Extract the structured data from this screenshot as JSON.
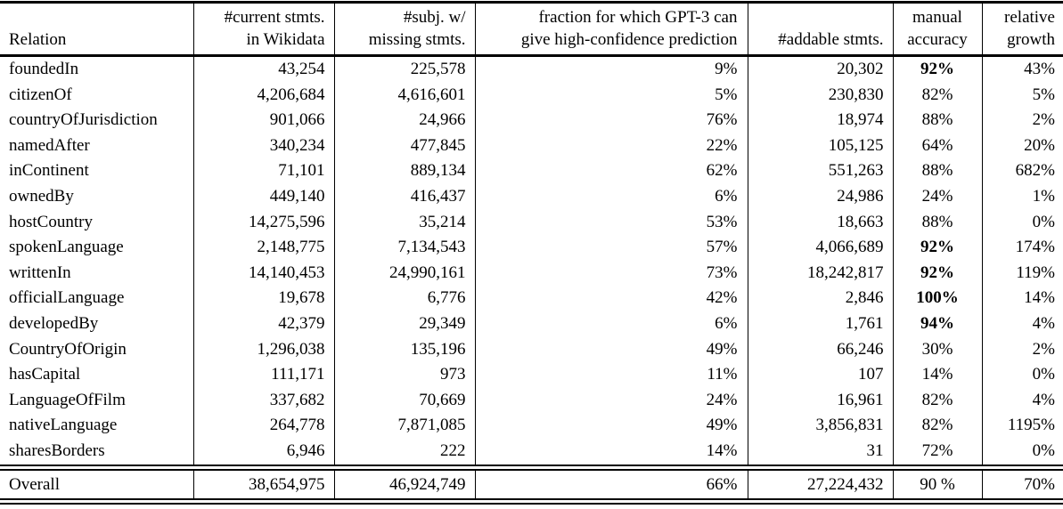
{
  "table": {
    "text_color": "#000000",
    "background_color": "#ffffff",
    "rule_color": "#000000",
    "columns": [
      {
        "key": "relation",
        "label": "Relation"
      },
      {
        "key": "current",
        "label": "#current stmts.\nin Wikidata"
      },
      {
        "key": "missing",
        "label": "#subj. w/\nmissing stmts."
      },
      {
        "key": "fraction",
        "label": "fraction for which GPT-3 can\ngive high-confidence prediction"
      },
      {
        "key": "addable",
        "label": "#addable stmts."
      },
      {
        "key": "accuracy",
        "label": "manual\naccuracy"
      },
      {
        "key": "growth",
        "label": "relative\ngrowth"
      }
    ],
    "rows": [
      {
        "relation": "foundedIn",
        "current": "43,254",
        "missing": "225,578",
        "fraction": "9%",
        "addable": "20,302",
        "accuracy": "92%",
        "growth": "43%",
        "bold": [
          "accuracy"
        ]
      },
      {
        "relation": "citizenOf",
        "current": "4,206,684",
        "missing": "4,616,601",
        "fraction": "5%",
        "addable": "230,830",
        "accuracy": "82%",
        "growth": "5%",
        "bold": []
      },
      {
        "relation": "countryOfJurisdiction",
        "current": "901,066",
        "missing": "24,966",
        "fraction": "76%",
        "addable": "18,974",
        "accuracy": "88%",
        "growth": "2%",
        "bold": []
      },
      {
        "relation": "namedAfter",
        "current": "340,234",
        "missing": "477,845",
        "fraction": "22%",
        "addable": "105,125",
        "accuracy": "64%",
        "growth": "20%",
        "bold": []
      },
      {
        "relation": "inContinent",
        "current": "71,101",
        "missing": "889,134",
        "fraction": "62%",
        "addable": "551,263",
        "accuracy": "88%",
        "growth": "682%",
        "bold": []
      },
      {
        "relation": "ownedBy",
        "current": "449,140",
        "missing": "416,437",
        "fraction": "6%",
        "addable": "24,986",
        "accuracy": "24%",
        "growth": "1%",
        "bold": []
      },
      {
        "relation": "hostCountry",
        "current": "14,275,596",
        "missing": "35,214",
        "fraction": "53%",
        "addable": "18,663",
        "accuracy": "88%",
        "growth": "0%",
        "bold": []
      },
      {
        "relation": "spokenLanguage",
        "current": "2,148,775",
        "missing": "7,134,543",
        "fraction": "57%",
        "addable": "4,066,689",
        "accuracy": "92%",
        "growth": "174%",
        "bold": [
          "accuracy"
        ]
      },
      {
        "relation": "writtenIn",
        "current": "14,140,453",
        "missing": "24,990,161",
        "fraction": "73%",
        "addable": "18,242,817",
        "accuracy": "92%",
        "growth": "119%",
        "bold": [
          "accuracy"
        ]
      },
      {
        "relation": "officialLanguage",
        "current": "19,678",
        "missing": "6,776",
        "fraction": "42%",
        "addable": "2,846",
        "accuracy": "100%",
        "growth": "14%",
        "bold": [
          "accuracy"
        ]
      },
      {
        "relation": "developedBy",
        "current": "42,379",
        "missing": "29,349",
        "fraction": "6%",
        "addable": "1,761",
        "accuracy": "94%",
        "growth": "4%",
        "bold": [
          "accuracy"
        ]
      },
      {
        "relation": "CountryOfOrigin",
        "current": "1,296,038",
        "missing": "135,196",
        "fraction": "49%",
        "addable": "66,246",
        "accuracy": "30%",
        "growth": "2%",
        "bold": []
      },
      {
        "relation": "hasCapital",
        "current": "111,171",
        "missing": "973",
        "fraction": "11%",
        "addable": "107",
        "accuracy": "14%",
        "growth": "0%",
        "bold": []
      },
      {
        "relation": "LanguageOfFilm",
        "current": "337,682",
        "missing": "70,669",
        "fraction": "24%",
        "addable": "16,961",
        "accuracy": "82%",
        "growth": "4%",
        "bold": []
      },
      {
        "relation": "nativeLanguage",
        "current": "264,778",
        "missing": "7,871,085",
        "fraction": "49%",
        "addable": "3,856,831",
        "accuracy": "82%",
        "growth": "1195%",
        "bold": []
      },
      {
        "relation": "sharesBorders",
        "current": "6,946",
        "missing": "222",
        "fraction": "14%",
        "addable": "31",
        "accuracy": "72%",
        "growth": "0%",
        "bold": []
      }
    ],
    "overall": {
      "relation": "Overall",
      "current": "38,654,975",
      "missing": "46,924,749",
      "fraction": "66%",
      "addable": "27,224,432",
      "accuracy": "90 %",
      "growth": "70%",
      "bold": []
    }
  }
}
